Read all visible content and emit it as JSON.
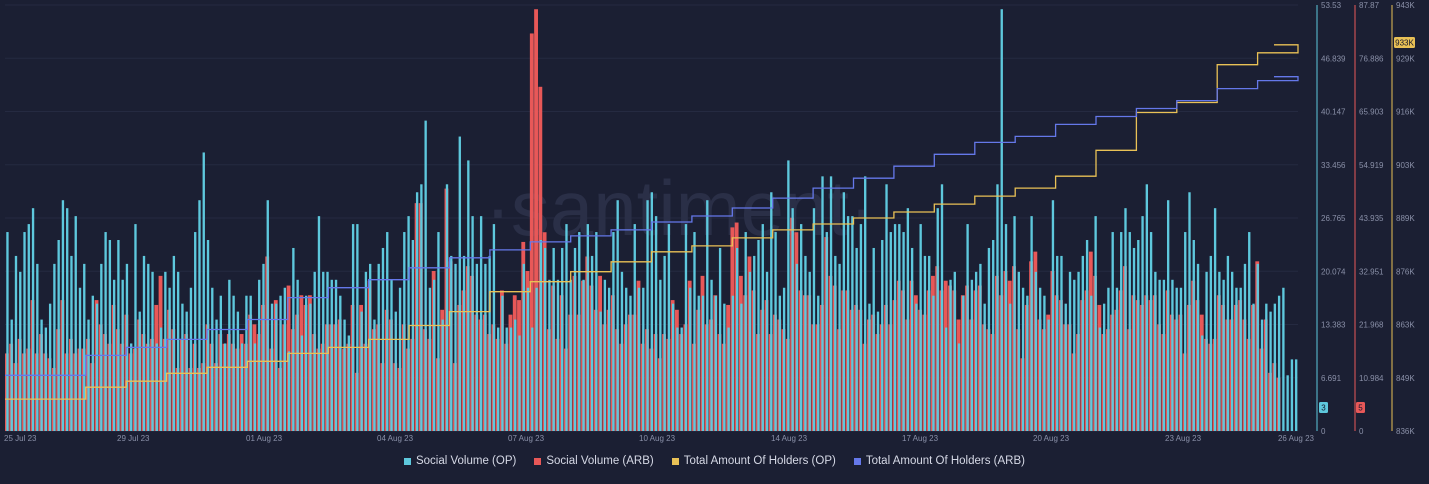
{
  "watermark": "·santiment·",
  "chart_data": {
    "type": "bar",
    "x_ticks": [
      "25 Jul 23",
      "29 Jul 23",
      "01 Aug 23",
      "04 Aug 23",
      "07 Aug 23",
      "10 Aug 23",
      "14 Aug 23",
      "17 Aug 23",
      "20 Aug 23",
      "23 Aug 23",
      "26 Aug 23"
    ],
    "x_range": [
      "2023-07-25",
      "2023-08-26"
    ],
    "axes": {
      "op_social": {
        "ylim": [
          0,
          53.53
        ],
        "ticks": [
          "53.53",
          "46.839",
          "40.147",
          "33.456",
          "26.765",
          "20.074",
          "13.383",
          "6.691",
          "0"
        ],
        "color": "#5ec8dd"
      },
      "arb_social": {
        "ylim": [
          0,
          87.87
        ],
        "ticks": [
          "87.87",
          "76.886",
          "65.903",
          "54.919",
          "43.935",
          "32.951",
          "21.968",
          "10.984",
          "0"
        ],
        "color": "#e85858"
      },
      "holders": {
        "ylim": [
          836000,
          943000
        ],
        "ticks": [
          "943K",
          "929K",
          "916K",
          "903K",
          "889K",
          "876K",
          "863K",
          "849K",
          "836K"
        ],
        "color": "#e9c156"
      }
    },
    "badges": {
      "op_social": "3",
      "arb_social": "5",
      "holders_op": "933K"
    },
    "series": [
      {
        "name": "Social Volume (OP)",
        "type": "bar",
        "axis": "op_social",
        "color": "#5ec8dd",
        "values": [
          25,
          14,
          22,
          20,
          25,
          26,
          28,
          21,
          14,
          13,
          16,
          21,
          24,
          29,
          28,
          22,
          27,
          18,
          21,
          14,
          17,
          16,
          21,
          25,
          24,
          19,
          24,
          19,
          21,
          11,
          26,
          15,
          22,
          21,
          20,
          11,
          13,
          20,
          18,
          22,
          20,
          16,
          15,
          18,
          25,
          29,
          35,
          24,
          18,
          14,
          17,
          11,
          19,
          17,
          15,
          11,
          17,
          17,
          11,
          19,
          21,
          29,
          16,
          16,
          17,
          18,
          10,
          23,
          19,
          12,
          17,
          16,
          20,
          27,
          20,
          20,
          19,
          19,
          17,
          14,
          12,
          26,
          26,
          15,
          20,
          21,
          14,
          21,
          23,
          25,
          19,
          15,
          18,
          25,
          27,
          24,
          30,
          31,
          39,
          18,
          19,
          25,
          14,
          31,
          22,
          21,
          37,
          22,
          34,
          27,
          21,
          27,
          21,
          22,
          26,
          13,
          17,
          13,
          13,
          14,
          12,
          21,
          18,
          13,
          18,
          24,
          23,
          19,
          23,
          19,
          23,
          26,
          19,
          23,
          25,
          19,
          26,
          22,
          25,
          15,
          19,
          18,
          25,
          29,
          20,
          18,
          17,
          26,
          18,
          18,
          29,
          30,
          27,
          19,
          22,
          26,
          16,
          13,
          13,
          26,
          18,
          25,
          17,
          17,
          29,
          19,
          17,
          23,
          16,
          13,
          17,
          23,
          16,
          25,
          20,
          22,
          24,
          26,
          20,
          30,
          25,
          17,
          18,
          34,
          28,
          21,
          26,
          22,
          20,
          28,
          17,
          32,
          25,
          32,
          22,
          21,
          30,
          27,
          27,
          23,
          26,
          32,
          16,
          23,
          15,
          24,
          31,
          25,
          26,
          26,
          25,
          28,
          23,
          16,
          26,
          22,
          22,
          17,
          28,
          31,
          13,
          19,
          20,
          11,
          17,
          26,
          19,
          20,
          21,
          16,
          23,
          24,
          31,
          53,
          26,
          16,
          27,
          20,
          18,
          17,
          27,
          20,
          18,
          17,
          14,
          29,
          22,
          22,
          16,
          20,
          19,
          20,
          22,
          24,
          17,
          27,
          13,
          16,
          18,
          25,
          18,
          25,
          28,
          25,
          23,
          24,
          27,
          31,
          25,
          20,
          19,
          19,
          29,
          19,
          18,
          18,
          25,
          30,
          24,
          21,
          12,
          20,
          22,
          28,
          20,
          19,
          22,
          20,
          18,
          18,
          21,
          25,
          16,
          21,
          14,
          16,
          15,
          16,
          17,
          18,
          7,
          9,
          9
        ]
      },
      {
        "name": "Social Volume (ARB)",
        "type": "bar",
        "axis": "arb_social",
        "color": "#e85858",
        "values": [
          16,
          18,
          14,
          19,
          16,
          17,
          27,
          16,
          20,
          16,
          15,
          13,
          21,
          27,
          16,
          19,
          16,
          17,
          17,
          19,
          14,
          27,
          22,
          20,
          18,
          26,
          21,
          18,
          24,
          16,
          17,
          23,
          20,
          18,
          19,
          26,
          32,
          19,
          25,
          21,
          13,
          19,
          20,
          13,
          18,
          13,
          14,
          22,
          18,
          14,
          20,
          18,
          20,
          18,
          17,
          20,
          18,
          24,
          22,
          20,
          26,
          36,
          17,
          27,
          13,
          22,
          30,
          21,
          24,
          28,
          26,
          28,
          20,
          17,
          18,
          22,
          22,
          22,
          23,
          17,
          18,
          26,
          12,
          26,
          18,
          31,
          21,
          22,
          14,
          25,
          23,
          14,
          13,
          22,
          17,
          19,
          47,
          47,
          21,
          19,
          33,
          15,
          25,
          50,
          35,
          14,
          26,
          29,
          34,
          32,
          24,
          23,
          24,
          20,
          22,
          19,
          29,
          18,
          24,
          28,
          27,
          39,
          33,
          82,
          87,
          71,
          41,
          21,
          30,
          19,
          28,
          17,
          24,
          32,
          24,
          31,
          36,
          30,
          25,
          32,
          22,
          25,
          28,
          21,
          18,
          22,
          24,
          24,
          31,
          18,
          21,
          17,
          20,
          15,
          20,
          19,
          27,
          25,
          20,
          22,
          31,
          18,
          25,
          32,
          22,
          23,
          28,
          20,
          18,
          26,
          42,
          43,
          32,
          28,
          36,
          29,
          20,
          25,
          27,
          20,
          24,
          23,
          21,
          19,
          44,
          41,
          29,
          28,
          28,
          22,
          22,
          26,
          40,
          32,
          30,
          21,
          29,
          29,
          25,
          26,
          25,
          18,
          23,
          24,
          20,
          22,
          26,
          22,
          27,
          31,
          29,
          23,
          31,
          28,
          25,
          24,
          29,
          32,
          34,
          29,
          31,
          30,
          29,
          23,
          28,
          30,
          23,
          29,
          30,
          22,
          21,
          20,
          32,
          28,
          33,
          31,
          34,
          21,
          15,
          26,
          35,
          37,
          23,
          21,
          24,
          33,
          28,
          27,
          22,
          22,
          16,
          20,
          27,
          29,
          37,
          32,
          26,
          20,
          21,
          24,
          25,
          29,
          34,
          21,
          28,
          27,
          26,
          28,
          27,
          28,
          22,
          20,
          29,
          24,
          23,
          24,
          16,
          26,
          31,
          27,
          24,
          19,
          18,
          19,
          28,
          26,
          23,
          23,
          26,
          27,
          23,
          19,
          26,
          35,
          17,
          23,
          12,
          14,
          11
        ]
      },
      {
        "name": "Total Amount Of Holders (OP)",
        "type": "line",
        "axis": "holders",
        "color": "#e9c156",
        "x": [
          "2023-07-25",
          "2023-07-27",
          "2023-07-28",
          "2023-07-29",
          "2023-07-30",
          "2023-07-31",
          "2023-08-01",
          "2023-08-02",
          "2023-08-03",
          "2023-08-04",
          "2023-08-05",
          "2023-08-06",
          "2023-08-07",
          "2023-08-08",
          "2023-08-09",
          "2023-08-10",
          "2023-08-11",
          "2023-08-12",
          "2023-08-13",
          "2023-08-14",
          "2023-08-15",
          "2023-08-16",
          "2023-08-17",
          "2023-08-18",
          "2023-08-19",
          "2023-08-20",
          "2023-08-21",
          "2023-08-22",
          "2023-08-23",
          "2023-08-24",
          "2023-08-25",
          "2023-08-26"
        ],
        "values": [
          844000,
          847000,
          848500,
          850500,
          852000,
          853500,
          855500,
          857000,
          859000,
          862500,
          866000,
          871000,
          873500,
          876000,
          878500,
          881000,
          882500,
          884500,
          886500,
          888000,
          889500,
          891000,
          893000,
          895000,
          897000,
          900000,
          906500,
          916000,
          918500,
          928000,
          931000,
          933000
        ]
      },
      {
        "name": "Total Amount Of Holders (ARB)",
        "type": "line",
        "axis": "holders",
        "color": "#6578ea",
        "x": [
          "2023-07-25",
          "2023-07-27",
          "2023-07-28",
          "2023-07-29",
          "2023-07-30",
          "2023-07-31",
          "2023-08-01",
          "2023-08-02",
          "2023-08-03",
          "2023-08-04",
          "2023-08-05",
          "2023-08-06",
          "2023-08-07",
          "2023-08-08",
          "2023-08-09",
          "2023-08-10",
          "2023-08-11",
          "2023-08-12",
          "2023-08-13",
          "2023-08-14",
          "2023-08-15",
          "2023-08-16",
          "2023-08-17",
          "2023-08-18",
          "2023-08-19",
          "2023-08-20",
          "2023-08-21",
          "2023-08-22",
          "2023-08-23",
          "2023-08-24",
          "2023-08-25",
          "2023-08-26"
        ],
        "values": [
          850000,
          855000,
          857000,
          859000,
          861500,
          864000,
          869500,
          872000,
          874000,
          877000,
          879500,
          881500,
          883500,
          885000,
          886500,
          888500,
          890000,
          892000,
          894500,
          897000,
          899500,
          902500,
          905500,
          908500,
          910000,
          913000,
          915000,
          917000,
          919000,
          922000,
          924000,
          925000
        ]
      }
    ],
    "legend": {
      "position": "bottom-center"
    }
  }
}
